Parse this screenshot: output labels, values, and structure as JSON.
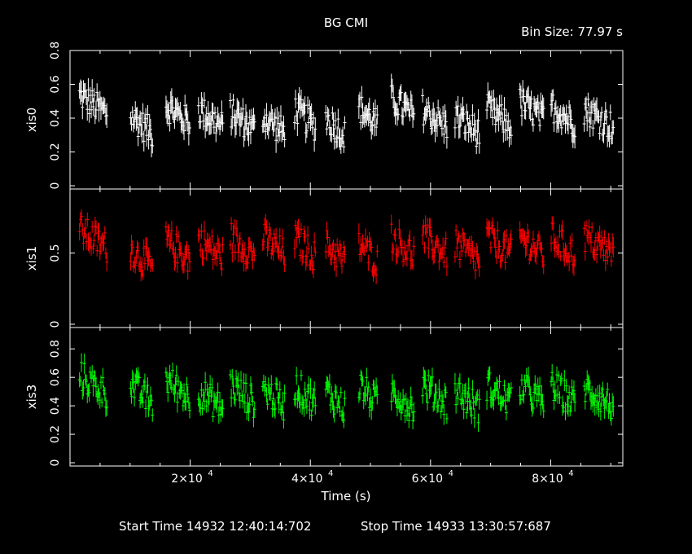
{
  "title": "BG CMI",
  "bin_size": "Bin Size: 77.97 s",
  "xlabel": "Time (s)",
  "start_time": "Start Time 14932 12:40:14:702",
  "stop_time": "Stop Time 14933 13:30:57:687",
  "colors": {
    "background": "#000000",
    "axes": "#ffffff",
    "xis0": "#ffffff",
    "xis1": "#ff0000",
    "xis3": "#00ff00"
  },
  "chart_data": {
    "type": "scatter",
    "x_range": [
      0,
      92000
    ],
    "x_ticks": [
      {
        "value": 20000,
        "mant": "2×10",
        "exp": "4"
      },
      {
        "value": 40000,
        "mant": "4×10",
        "exp": "4"
      },
      {
        "value": 60000,
        "mant": "6×10",
        "exp": "4"
      },
      {
        "value": 80000,
        "mant": "8×10",
        "exp": "4"
      }
    ],
    "segments": [
      [
        1500,
        6200
      ],
      [
        10000,
        13800
      ],
      [
        15900,
        20000
      ],
      [
        21300,
        25500
      ],
      [
        26600,
        30800
      ],
      [
        32000,
        35800
      ],
      [
        37300,
        40900
      ],
      [
        42500,
        45800
      ],
      [
        48000,
        51200
      ],
      [
        53400,
        57300
      ],
      [
        58600,
        62800
      ],
      [
        64000,
        68200
      ],
      [
        69300,
        73500
      ],
      [
        74800,
        78900
      ],
      [
        80000,
        84100
      ],
      [
        85500,
        90500
      ]
    ],
    "panels": [
      {
        "name": "xis0",
        "ylabel": "xis0",
        "ylim": [
          0,
          0.8
        ],
        "yticks": [
          {
            "value": 0,
            "label": "0"
          },
          {
            "value": 0.2,
            "label": "0.2"
          },
          {
            "value": 0.4,
            "label": "0.4"
          },
          {
            "value": 0.6,
            "label": "0.6"
          },
          {
            "value": 0.8,
            "label": "0.8"
          }
        ],
        "segment_means": [
          0.48,
          0.36,
          0.42,
          0.4,
          0.38,
          0.36,
          0.4,
          0.35,
          0.41,
          0.46,
          0.4,
          0.36,
          0.4,
          0.44,
          0.42,
          0.4
        ],
        "spread": 0.18
      },
      {
        "name": "xis1",
        "ylabel": "xis1",
        "ylim": [
          0,
          0.95
        ],
        "yticks": [
          {
            "value": 0,
            "label": "0"
          },
          {
            "value": 0.5,
            "label": "0.5"
          }
        ],
        "segment_means": [
          0.6,
          0.46,
          0.52,
          0.53,
          0.55,
          0.55,
          0.54,
          0.5,
          0.5,
          0.55,
          0.55,
          0.5,
          0.55,
          0.55,
          0.55,
          0.55
        ],
        "spread": 0.22
      },
      {
        "name": "xis3",
        "ylabel": "xis3",
        "ylim": [
          0,
          0.95
        ],
        "yticks": [
          {
            "value": 0,
            "label": "0"
          },
          {
            "value": 0.2,
            "label": "0.2"
          },
          {
            "value": 0.4,
            "label": "0.4"
          },
          {
            "value": 0.6,
            "label": "0.6"
          },
          {
            "value": 0.8,
            "label": "0.8"
          }
        ],
        "segment_means": [
          0.55,
          0.48,
          0.52,
          0.44,
          0.48,
          0.46,
          0.48,
          0.44,
          0.48,
          0.44,
          0.48,
          0.44,
          0.48,
          0.48,
          0.48,
          0.46
        ],
        "spread": 0.22
      }
    ]
  }
}
